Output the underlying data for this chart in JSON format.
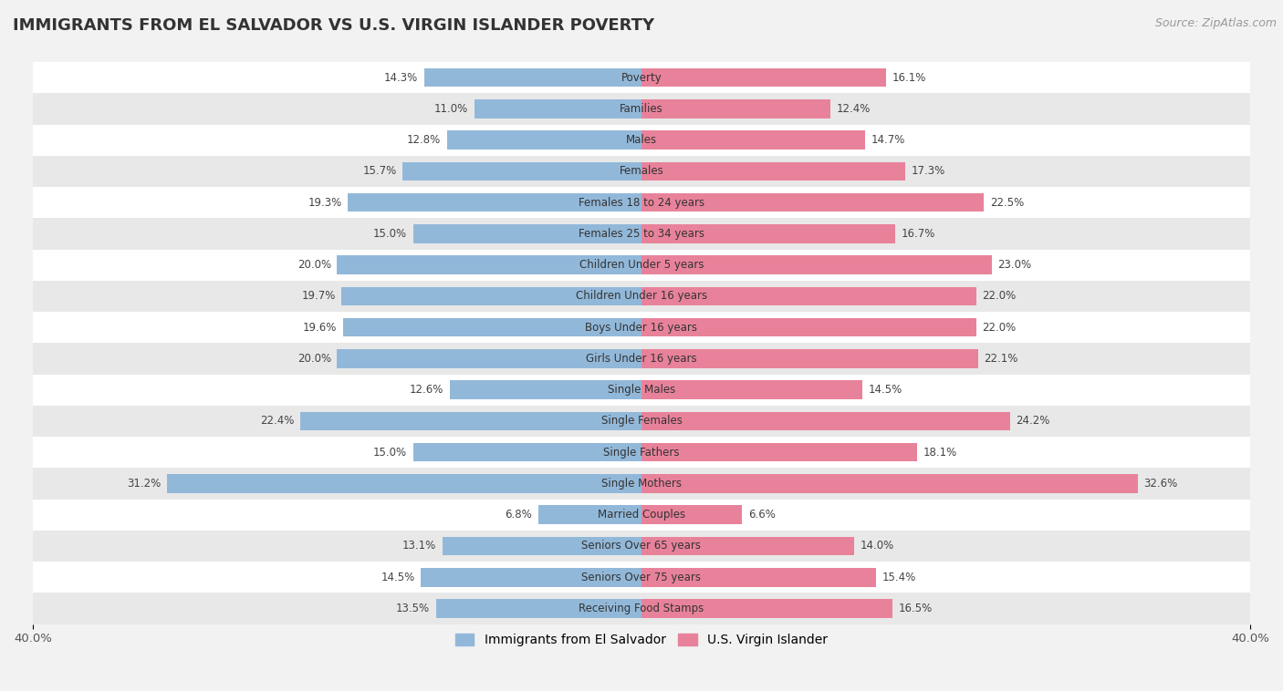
{
  "title": "IMMIGRANTS FROM EL SALVADOR VS U.S. VIRGIN ISLANDER POVERTY",
  "source": "Source: ZipAtlas.com",
  "categories": [
    "Poverty",
    "Families",
    "Males",
    "Females",
    "Females 18 to 24 years",
    "Females 25 to 34 years",
    "Children Under 5 years",
    "Children Under 16 years",
    "Boys Under 16 years",
    "Girls Under 16 years",
    "Single Males",
    "Single Females",
    "Single Fathers",
    "Single Mothers",
    "Married Couples",
    "Seniors Over 65 years",
    "Seniors Over 75 years",
    "Receiving Food Stamps"
  ],
  "left_values": [
    14.3,
    11.0,
    12.8,
    15.7,
    19.3,
    15.0,
    20.0,
    19.7,
    19.6,
    20.0,
    12.6,
    22.4,
    15.0,
    31.2,
    6.8,
    13.1,
    14.5,
    13.5
  ],
  "right_values": [
    16.1,
    12.4,
    14.7,
    17.3,
    22.5,
    16.7,
    23.0,
    22.0,
    22.0,
    22.1,
    14.5,
    24.2,
    18.1,
    32.6,
    6.6,
    14.0,
    15.4,
    16.5
  ],
  "left_color": "#92b8d9",
  "right_color": "#e8829a",
  "left_label": "Immigrants from El Salvador",
  "right_label": "U.S. Virgin Islander",
  "x_min": -40.0,
  "x_max": 40.0,
  "background_color": "#f2f2f2",
  "bar_height": 0.6,
  "row_bg_colors": [
    "#ffffff",
    "#e8e8e8"
  ]
}
